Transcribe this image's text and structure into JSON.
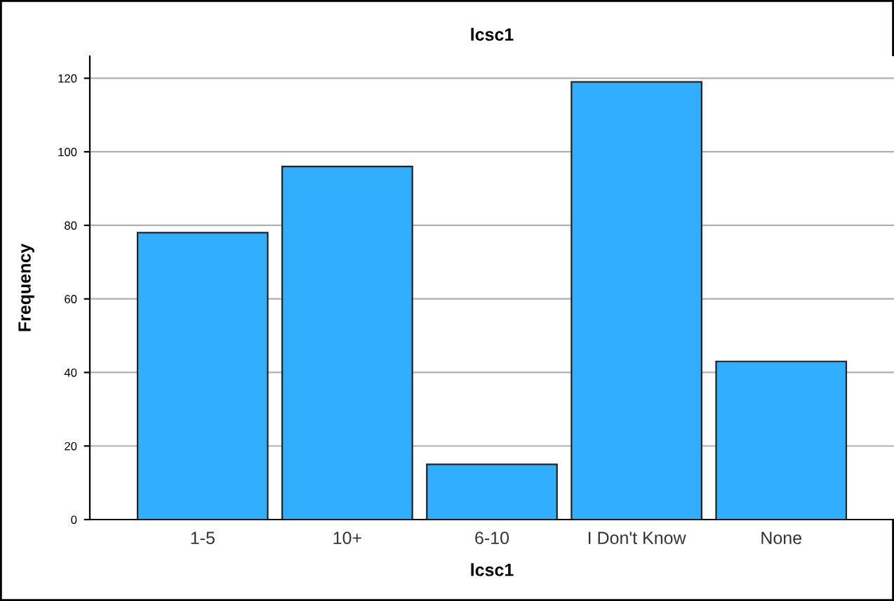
{
  "chart_data": {
    "type": "bar",
    "title": "lcsc1",
    "xlabel": "lcsc1",
    "ylabel": "Frequency",
    "categories": [
      "1-5",
      "10+",
      "6-10",
      "I Don't Know",
      "None"
    ],
    "values": [
      78,
      96,
      15,
      119,
      43
    ],
    "color": "#31aefe",
    "ylim": [
      0,
      126
    ],
    "yticks": [
      0,
      20,
      40,
      60,
      80,
      100,
      120
    ],
    "grid": "y"
  }
}
